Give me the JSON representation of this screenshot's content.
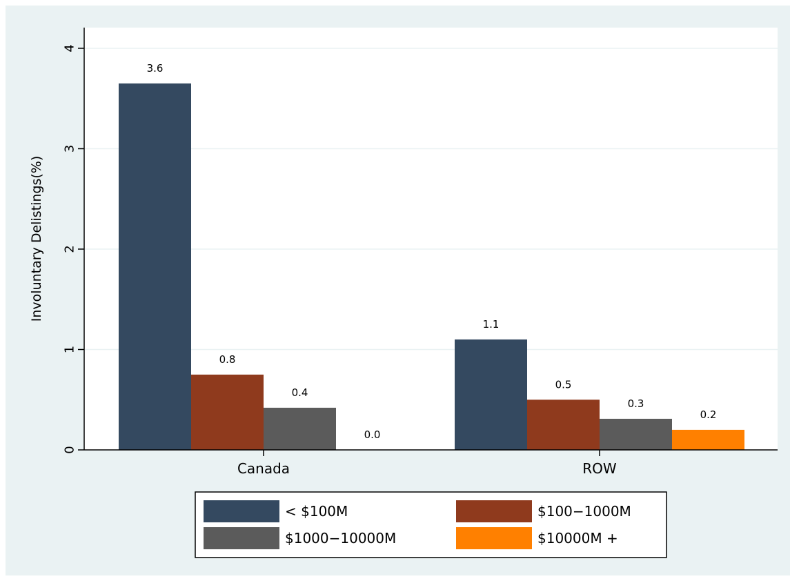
{
  "chart_data": {
    "type": "bar",
    "title": "",
    "xlabel": "",
    "ylabel": "Involuntary Delistings(%)",
    "ylim": [
      0,
      4
    ],
    "yticks": [
      0,
      1,
      2,
      3,
      4
    ],
    "grid": true,
    "legend_position": "bottom",
    "categories": [
      "Canada",
      "ROW"
    ],
    "series": [
      {
        "name": "< $100M",
        "color": "#344960",
        "values": [
          3.65,
          1.1
        ],
        "labels": [
          "3.6",
          "1.1"
        ]
      },
      {
        "name": "$100−1000M",
        "color": "#8f3a1d",
        "values": [
          0.75,
          0.5
        ],
        "labels": [
          "0.8",
          "0.5"
        ]
      },
      {
        "name": "$1000−10000M",
        "color": "#5b5b5b",
        "values": [
          0.42,
          0.31
        ],
        "labels": [
          "0.4",
          "0.3"
        ]
      },
      {
        "name": "$10000M +",
        "color": "#ff8000",
        "values": [
          0.0,
          0.2
        ],
        "labels": [
          "0.0",
          "0.2"
        ]
      }
    ]
  },
  "colors": {
    "outer_background": "#eaf2f3",
    "plot_background": "#ffffff",
    "gridline": "#eaf2f3"
  }
}
